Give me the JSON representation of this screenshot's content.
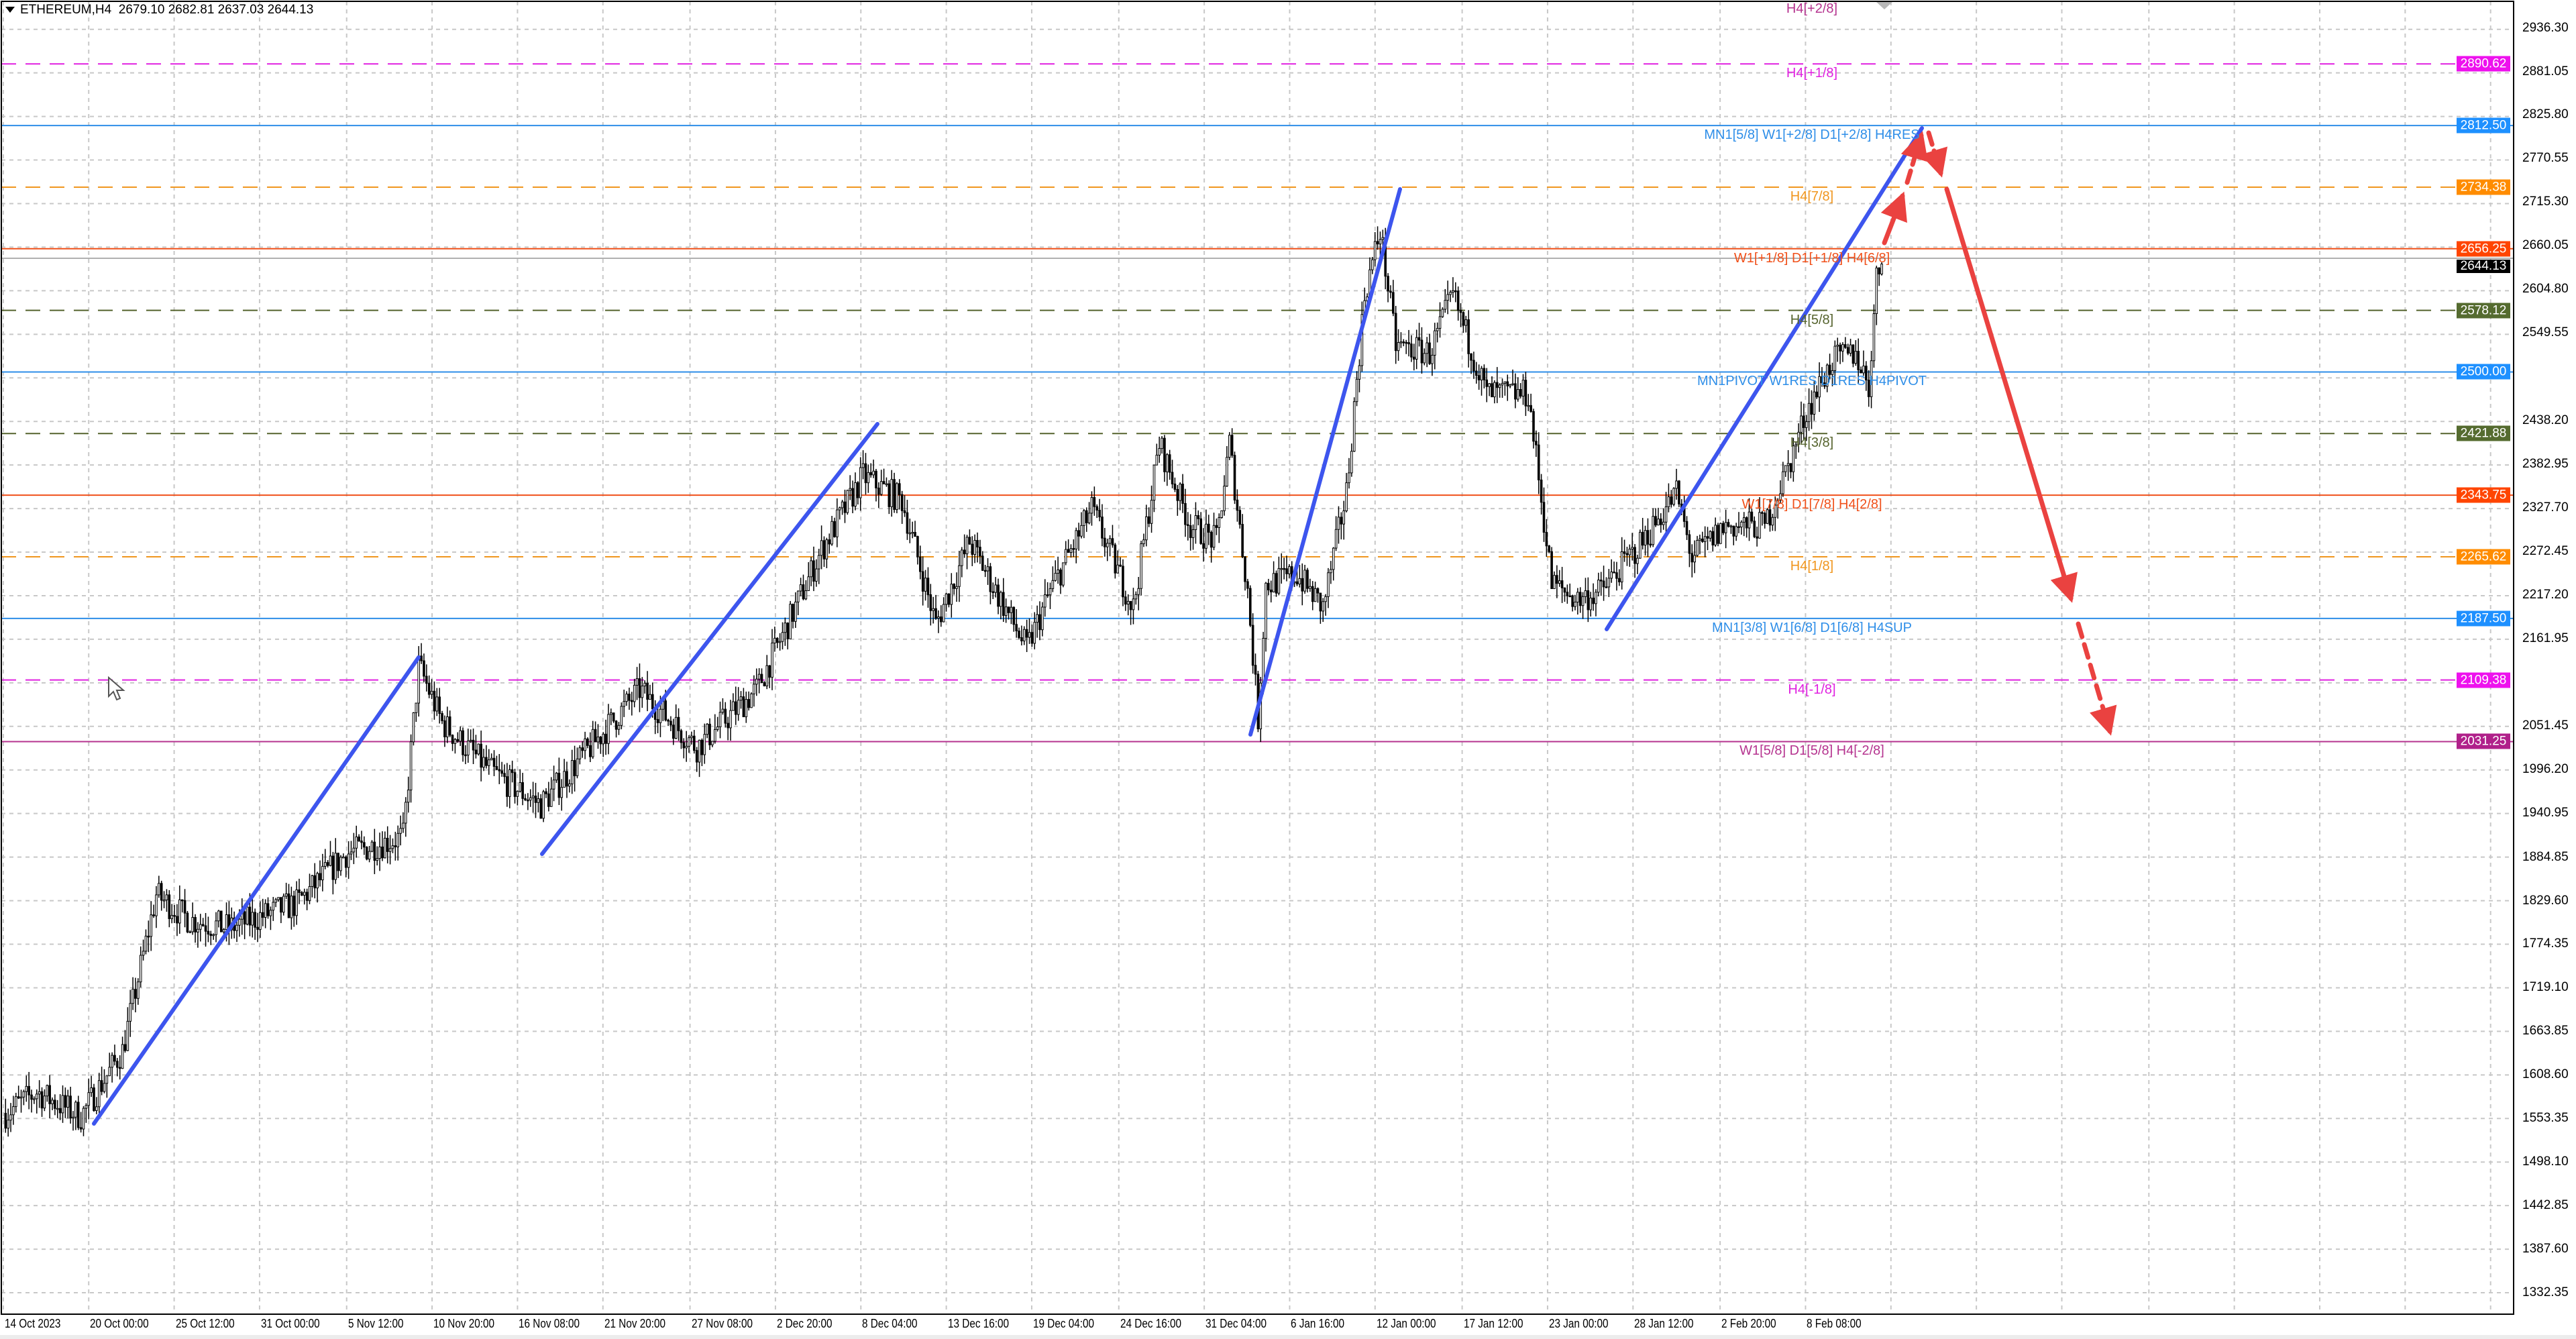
{
  "header": {
    "symbol": "ETHEREUM,H4",
    "ohlc": "2679.10 2682.81 2637.03 2644.13",
    "menu_icon": "triangle-down-icon"
  },
  "colors": {
    "background": "#ffffff",
    "trendline": "#3d55ee",
    "forecast_arrow": "#ea4240",
    "bull_candle": "#ffffff",
    "bear_candle": "#000000",
    "grid": "#c8c8c8"
  },
  "price_axis": {
    "ticks": [
      "2936.30",
      "2881.05",
      "2825.80",
      "2770.55",
      "2715.30",
      "2660.05",
      "2604.80",
      "2549.55",
      "2438.20",
      "2382.95",
      "2327.70",
      "2272.45",
      "2217.20",
      "2161.95",
      "2051.45",
      "1996.20",
      "1940.95",
      "1884.85",
      "1829.60",
      "1774.35",
      "1719.10",
      "1663.85",
      "1608.60",
      "1553.35",
      "1498.10",
      "1442.85",
      "1387.60",
      "1332.35"
    ],
    "current_price": "2644.13",
    "current_color": "#000000"
  },
  "time_axis": {
    "ticks": [
      "14 Oct 2023",
      "20 Oct 00:00",
      "25 Oct 12:00",
      "31 Oct 00:00",
      "5 Nov 12:00",
      "10 Nov 20:00",
      "16 Nov 08:00",
      "21 Nov 20:00",
      "27 Nov 08:00",
      "2 Dec 20:00",
      "8 Dec 04:00",
      "13 Dec 16:00",
      "19 Dec 04:00",
      "24 Dec 16:00",
      "31 Dec 04:00",
      "6 Jan 16:00",
      "12 Jan 00:00",
      "17 Jan 12:00",
      "23 Jan 00:00",
      "28 Jan 12:00",
      "2 Feb 20:00",
      "8 Feb 08:00"
    ]
  },
  "levels": [
    {
      "label": "H4[+2/8]",
      "price": null,
      "color": "#b5338f",
      "style": "none"
    },
    {
      "label": "H4[+1/8]",
      "price": "2890.62",
      "color": "#e020e0",
      "box": "#ee11ee",
      "style": "dashed"
    },
    {
      "label": "MN1[5/8] W1[+2/8] D1[+2/8] H4RES",
      "price": "2812.50",
      "color": "#2e8ee8",
      "box": "#1e90ff",
      "style": "solid"
    },
    {
      "label": "H4[7/8]",
      "price": "2734.38",
      "color": "#f0961e",
      "box": "#ff8c00",
      "style": "dashed"
    },
    {
      "label": "W1[+1/8] D1[+1/8] H4[6/8]",
      "price": "2656.25",
      "color": "#f0501a",
      "box": "#ff4500",
      "style": "solid"
    },
    {
      "label": "H4[5/8]",
      "price": "2578.12",
      "color": "#55632d",
      "box": "#556b2f",
      "style": "dashed"
    },
    {
      "label": "MN1PIVOT W1RES D1RES H4PIVOT",
      "price": "2500.00",
      "color": "#2e8ee8",
      "box": "#1e90ff",
      "style": "solid"
    },
    {
      "label": "H4[3/8]",
      "price": "2421.88",
      "color": "#55632d",
      "box": "#556b2f",
      "style": "dashed"
    },
    {
      "label": "W1[7/8] D1[7/8] H4[2/8]",
      "price": "2343.75",
      "color": "#f0501a",
      "box": "#ff4500",
      "style": "solid"
    },
    {
      "label": "H4[1/8]",
      "price": "2265.62",
      "color": "#f0961e",
      "box": "#ff8c00",
      "style": "dashed"
    },
    {
      "label": "MN1[3/8] W1[6/8] D1[6/8] H4SUP",
      "price": "2187.50",
      "color": "#2e8ee8",
      "box": "#1e90ff",
      "style": "solid"
    },
    {
      "label": "H4[-1/8]",
      "price": "2109.38",
      "color": "#e020e0",
      "box": "#ee11ee",
      "style": "dashed"
    },
    {
      "label": "W1[5/8] D1[5/8] H4[-2/8]",
      "price": "2031.25",
      "color": "#b5338f",
      "box": "#b0208a",
      "style": "solid"
    }
  ],
  "chart_data": {
    "type": "candlestick",
    "timeframe": "H4",
    "approx_close_path": [
      [
        "2023-10-14 16:00",
        1560
      ],
      [
        "2023-10-16 16:00",
        1587
      ],
      [
        "2023-10-19 12:00",
        1556
      ],
      [
        "2023-10-22 04:00",
        1639
      ],
      [
        "2023-10-24 08:00",
        1837
      ],
      [
        "2023-10-26 12:00",
        1805
      ],
      [
        "2023-10-29 00:00",
        1795
      ],
      [
        "2023-11-02 08:00",
        1826
      ],
      [
        "2023-11-05 12:00",
        1889
      ],
      [
        "2023-11-09 04:00",
        1910
      ],
      [
        "2023-11-10 04:00",
        2128
      ],
      [
        "2023-11-11 16:00",
        2055
      ],
      [
        "2023-11-14 20:00",
        1993
      ],
      [
        "2023-11-18 00:00",
        1951
      ],
      [
        "2023-11-21 04:00",
        2024
      ],
      [
        "2023-11-24 08:00",
        2097
      ],
      [
        "2023-11-28 00:00",
        2024
      ],
      [
        "2023-12-01 20:00",
        2097
      ],
      [
        "2023-12-03 20:00",
        2180
      ],
      [
        "2023-12-06 00:00",
        2274
      ],
      [
        "2023-12-08 16:00",
        2368
      ],
      [
        "2023-12-11 04:00",
        2337
      ],
      [
        "2023-12-13 08:00",
        2180
      ],
      [
        "2023-12-15 12:00",
        2285
      ],
      [
        "2023-12-19 04:00",
        2149
      ],
      [
        "2023-12-20 16:00",
        2222
      ],
      [
        "2023-12-23 08:00",
        2326
      ],
      [
        "2023-12-26 00:00",
        2201
      ],
      [
        "2023-12-27 16:00",
        2409
      ],
      [
        "2023-12-29 16:00",
        2305
      ],
      [
        "2023-12-31 08:00",
        2285
      ],
      [
        "2024-01-01 04:00",
        2409
      ],
      [
        "2024-01-02 08:00",
        2222
      ],
      [
        "2024-01-03 00:00",
        2060
      ],
      [
        "2024-01-03 12:00",
        2230
      ],
      [
        "2024-01-05 12:00",
        2243
      ],
      [
        "2024-01-07 04:00",
        2201
      ],
      [
        "2024-01-08 16:00",
        2347
      ],
      [
        "2024-01-09 20:00",
        2597
      ],
      [
        "2024-01-10 20:00",
        2680
      ],
      [
        "2024-01-11 20:00",
        2534
      ],
      [
        "2024-01-14 00:00",
        2524
      ],
      [
        "2024-01-15 12:00",
        2597
      ],
      [
        "2024-01-17 16:00",
        2472
      ],
      [
        "2024-01-20 08:00",
        2472
      ],
      [
        "2024-01-21 20:00",
        2232
      ],
      [
        "2024-01-23 12:00",
        2211
      ],
      [
        "2024-01-25 00:00",
        2222
      ],
      [
        "2024-01-27 16:00",
        2285
      ],
      [
        "2024-01-29 20:00",
        2347
      ],
      [
        "2024-01-30 20:00",
        2264
      ],
      [
        "2024-02-02 00:00",
        2305
      ],
      [
        "2024-02-04 12:00",
        2305
      ],
      [
        "2024-02-06 04:00",
        2389
      ],
      [
        "2024-02-07 04:00",
        2451
      ],
      [
        "2024-02-08 20:00",
        2514
      ],
      [
        "2024-02-10 08:00",
        2524
      ],
      [
        "2024-02-11 04:00",
        2482
      ],
      [
        "2024-02-11 16:00",
        2618
      ],
      [
        "2024-02-12 00:00",
        2644.13
      ]
    ],
    "ylim": [
      1310,
      2960
    ],
    "grid": true
  }
}
